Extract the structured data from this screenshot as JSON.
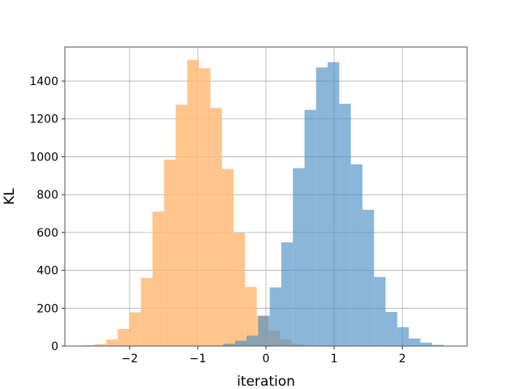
{
  "chart_data": {
    "type": "bar",
    "xlabel": "iteration",
    "ylabel": "KL",
    "xlim": [
      -2.95,
      2.95
    ],
    "ylim": [
      0,
      1580
    ],
    "grid": true,
    "xticks": [
      -2,
      -1,
      0,
      1,
      2
    ],
    "xtick_labels": [
      "−2",
      "−1",
      "0",
      "1",
      "2"
    ],
    "yticks": [
      0,
      200,
      400,
      600,
      800,
      1000,
      1200,
      1400
    ],
    "bin_width": 0.17,
    "series": [
      {
        "color": "#ffbb78",
        "opacity": 0.85,
        "bins": [
          {
            "x": -2.6,
            "y": 4
          },
          {
            "x": -2.43,
            "y": 10
          },
          {
            "x": -2.26,
            "y": 35
          },
          {
            "x": -2.09,
            "y": 90
          },
          {
            "x": -1.92,
            "y": 178
          },
          {
            "x": -1.75,
            "y": 360
          },
          {
            "x": -1.58,
            "y": 710
          },
          {
            "x": -1.41,
            "y": 985
          },
          {
            "x": -1.24,
            "y": 1275
          },
          {
            "x": -1.07,
            "y": 1512
          },
          {
            "x": -0.9,
            "y": 1468
          },
          {
            "x": -0.73,
            "y": 1258
          },
          {
            "x": -0.56,
            "y": 935
          },
          {
            "x": -0.39,
            "y": 598
          },
          {
            "x": -0.22,
            "y": 312
          },
          {
            "x": -0.05,
            "y": 160
          },
          {
            "x": 0.12,
            "y": 82
          },
          {
            "x": 0.29,
            "y": 35
          },
          {
            "x": 0.46,
            "y": 10
          }
        ]
      },
      {
        "color": "#4c8fc4",
        "opacity": 0.65,
        "bins": [
          {
            "x": -0.71,
            "y": 3
          },
          {
            "x": -0.54,
            "y": 12
          },
          {
            "x": -0.37,
            "y": 28
          },
          {
            "x": -0.2,
            "y": 55
          },
          {
            "x": -0.03,
            "y": 160
          },
          {
            "x": 0.14,
            "y": 310
          },
          {
            "x": 0.31,
            "y": 548
          },
          {
            "x": 0.48,
            "y": 940
          },
          {
            "x": 0.65,
            "y": 1248
          },
          {
            "x": 0.82,
            "y": 1472
          },
          {
            "x": 0.99,
            "y": 1500
          },
          {
            "x": 1.16,
            "y": 1280
          },
          {
            "x": 1.33,
            "y": 960
          },
          {
            "x": 1.5,
            "y": 720
          },
          {
            "x": 1.67,
            "y": 365
          },
          {
            "x": 1.84,
            "y": 180
          },
          {
            "x": 2.01,
            "y": 100
          },
          {
            "x": 2.18,
            "y": 40
          },
          {
            "x": 2.35,
            "y": 18
          },
          {
            "x": 2.52,
            "y": 6
          }
        ]
      }
    ]
  }
}
